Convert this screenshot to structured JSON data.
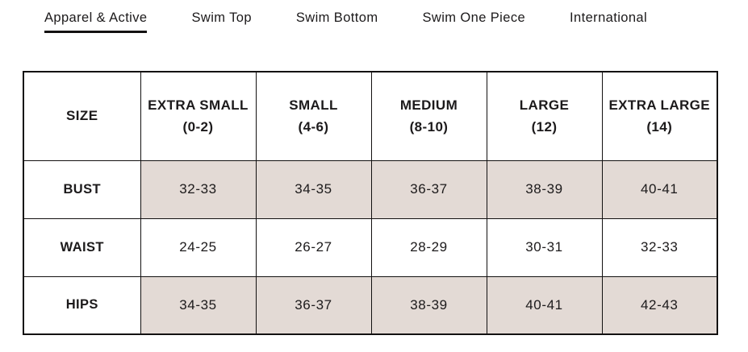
{
  "tabs": [
    {
      "label": "Apparel & Active",
      "active": true
    },
    {
      "label": "Swim Top",
      "active": false
    },
    {
      "label": "Swim Bottom",
      "active": false
    },
    {
      "label": "Swim One Piece",
      "active": false
    },
    {
      "label": "International",
      "active": false
    }
  ],
  "size_chart": {
    "type": "table",
    "columns": [
      {
        "label": "SIZE",
        "sublabel": ""
      },
      {
        "label": "EXTRA SMALL",
        "sublabel": "(0-2)"
      },
      {
        "label": "SMALL",
        "sublabel": "(4-6)"
      },
      {
        "label": "MEDIUM",
        "sublabel": "(8-10)"
      },
      {
        "label": "LARGE",
        "sublabel": "(12)"
      },
      {
        "label": "EXTRA LARGE",
        "sublabel": "(14)"
      }
    ],
    "rows": [
      {
        "label": "BUST",
        "shaded": true,
        "values": [
          "32-33",
          "34-35",
          "36-37",
          "38-39",
          "40-41"
        ]
      },
      {
        "label": "WAIST",
        "shaded": false,
        "values": [
          "24-25",
          "26-27",
          "28-29",
          "30-31",
          "32-33"
        ]
      },
      {
        "label": "HIPS",
        "shaded": true,
        "values": [
          "34-35",
          "36-37",
          "38-39",
          "40-41",
          "42-43"
        ]
      }
    ]
  },
  "colors": {
    "shaded_cell": "#e3dad5",
    "text": "#1c1a1b",
    "border": "#131111"
  }
}
